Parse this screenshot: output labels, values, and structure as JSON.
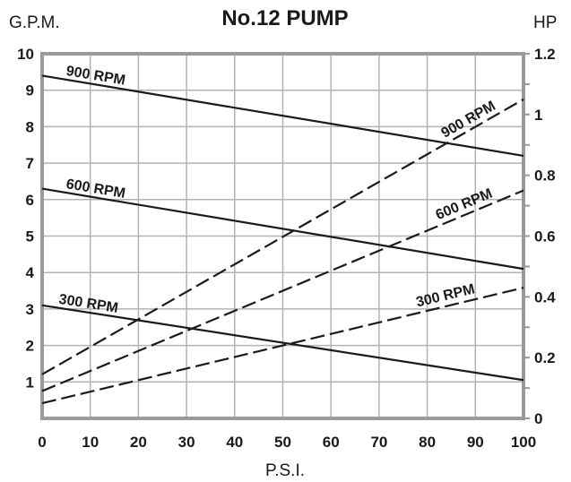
{
  "chart_data": {
    "type": "line",
    "title": "No.12 PUMP",
    "xlabel": "P.S.I.",
    "ylabel_left": "G.P.M.",
    "ylabel_right": "HP",
    "x_ticks": [
      "0",
      "10",
      "20",
      "30",
      "40",
      "50",
      "60",
      "70",
      "80",
      "90",
      "100"
    ],
    "y_left_ticks": [
      "1",
      "2",
      "3",
      "4",
      "5",
      "6",
      "7",
      "8",
      "9",
      "10"
    ],
    "y_right_ticks": [
      "0",
      "0.2",
      "0.4",
      "0.6",
      "0.8",
      "1",
      "1.2"
    ],
    "xlim": [
      0,
      100
    ],
    "ylim_left": [
      0,
      10
    ],
    "ylim_right": [
      0,
      1.2
    ],
    "grid": true,
    "flow_series": [
      {
        "name": "900 RPM",
        "axis": "left",
        "style": "solid",
        "x": [
          0,
          100
        ],
        "y": [
          9.4,
          7.2
        ]
      },
      {
        "name": "600 RPM",
        "axis": "left",
        "style": "solid",
        "x": [
          0,
          100
        ],
        "y": [
          6.3,
          4.1
        ]
      },
      {
        "name": "300 RPM",
        "axis": "left",
        "style": "solid",
        "x": [
          0,
          100
        ],
        "y": [
          3.1,
          1.05
        ]
      }
    ],
    "power_series": [
      {
        "name": "900 RPM",
        "axis": "right",
        "style": "dashed",
        "x": [
          0,
          100
        ],
        "y": [
          0.145,
          1.05
        ]
      },
      {
        "name": "600 RPM",
        "axis": "right",
        "style": "dashed",
        "x": [
          0,
          100
        ],
        "y": [
          0.09,
          0.75
        ]
      },
      {
        "name": "300 RPM",
        "axis": "right",
        "style": "dashed",
        "x": [
          0,
          100
        ],
        "y": [
          0.05,
          0.43
        ]
      }
    ]
  }
}
